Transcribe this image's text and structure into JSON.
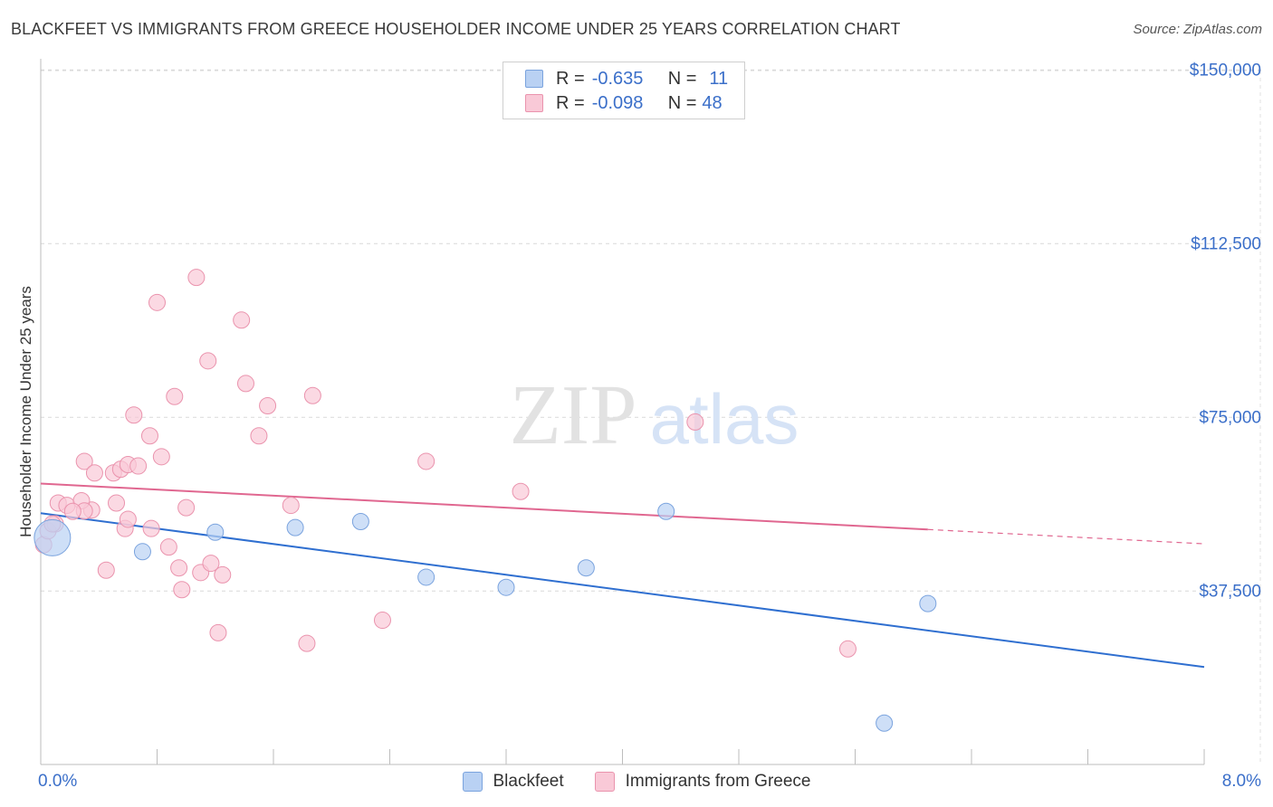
{
  "title": "BLACKFEET VS IMMIGRANTS FROM GREECE HOUSEHOLDER INCOME UNDER 25 YEARS CORRELATION CHART",
  "source": "Source: ZipAtlas.com",
  "watermark": {
    "zip": "ZIP",
    "atlas": "atlas"
  },
  "legend": {
    "r_label": "R =",
    "n_label": "N =",
    "rows": [
      {
        "r": "-0.635",
        "n": "11"
      },
      {
        "r": "-0.098",
        "n": "48"
      }
    ]
  },
  "colors": {
    "blackfeet_fill": "#b9d1f3",
    "blackfeet_stroke": "#7aa3de",
    "blackfeet_line": "#2f6fd0",
    "greece_fill": "#f9c9d7",
    "greece_stroke": "#ea93ad",
    "greece_line": "#e06790",
    "tick_label": "#3b6fc9"
  },
  "chart_data": {
    "type": "scatter",
    "title": "BLACKFEET VS IMMIGRANTS FROM GREECE HOUSEHOLDER INCOME UNDER 25 YEARS CORRELATION CHART",
    "xlabel": "",
    "ylabel": "Householder Income Under 25 years",
    "xlim": [
      0,
      8
    ],
    "ylim": [
      0,
      155000
    ],
    "x_tick_labels": {
      "min": "0.0%",
      "max": "8.0%"
    },
    "y_ticks": [
      {
        "value": 37500,
        "label": "$37,500"
      },
      {
        "value": 75000,
        "label": "$75,000"
      },
      {
        "value": 112500,
        "label": "$112,500"
      },
      {
        "value": 150000,
        "label": "$150,000"
      }
    ],
    "series": [
      {
        "name": "Blackfeet",
        "points": [
          {
            "x": 0.08,
            "y": 49000,
            "size": 20
          },
          {
            "x": 0.7,
            "y": 46000,
            "size": 9
          },
          {
            "x": 1.2,
            "y": 50200,
            "size": 9
          },
          {
            "x": 1.75,
            "y": 51200,
            "size": 9
          },
          {
            "x": 2.2,
            "y": 52500,
            "size": 9
          },
          {
            "x": 2.65,
            "y": 40500,
            "size": 9
          },
          {
            "x": 3.2,
            "y": 38300,
            "size": 9
          },
          {
            "x": 3.75,
            "y": 42500,
            "size": 9
          },
          {
            "x": 4.3,
            "y": 54700,
            "size": 9
          },
          {
            "x": 6.1,
            "y": 34800,
            "size": 9
          },
          {
            "x": 5.8,
            "y": 9000,
            "size": 9
          }
        ],
        "trend": {
          "x0": 0,
          "y0": 54300,
          "x1": 8,
          "y1": 21100,
          "dashed_from": null
        }
      },
      {
        "name": "Immigrants from Greece",
        "points": [
          {
            "x": 0.02,
            "y": 47500
          },
          {
            "x": 0.05,
            "y": 50500
          },
          {
            "x": 0.1,
            "y": 52000
          },
          {
            "x": 0.12,
            "y": 56500
          },
          {
            "x": 0.18,
            "y": 56000
          },
          {
            "x": 0.35,
            "y": 55000
          },
          {
            "x": 0.28,
            "y": 57000
          },
          {
            "x": 0.3,
            "y": 54800
          },
          {
            "x": 0.3,
            "y": 65500
          },
          {
            "x": 0.37,
            "y": 63000
          },
          {
            "x": 0.45,
            "y": 42000
          },
          {
            "x": 0.5,
            "y": 63000
          },
          {
            "x": 0.52,
            "y": 56500
          },
          {
            "x": 0.55,
            "y": 63800
          },
          {
            "x": 0.58,
            "y": 51000
          },
          {
            "x": 0.6,
            "y": 53000
          },
          {
            "x": 0.6,
            "y": 64800
          },
          {
            "x": 0.64,
            "y": 75500
          },
          {
            "x": 0.67,
            "y": 64500
          },
          {
            "x": 0.75,
            "y": 71000
          },
          {
            "x": 0.76,
            "y": 51000
          },
          {
            "x": 0.8,
            "y": 99800
          },
          {
            "x": 0.83,
            "y": 66500
          },
          {
            "x": 0.88,
            "y": 47000
          },
          {
            "x": 0.92,
            "y": 79500
          },
          {
            "x": 0.95,
            "y": 42500
          },
          {
            "x": 0.97,
            "y": 37800
          },
          {
            "x": 1.0,
            "y": 55500
          },
          {
            "x": 1.07,
            "y": 105200
          },
          {
            "x": 1.1,
            "y": 41500
          },
          {
            "x": 1.15,
            "y": 87200
          },
          {
            "x": 1.17,
            "y": 43500
          },
          {
            "x": 1.22,
            "y": 28500
          },
          {
            "x": 1.25,
            "y": 41000
          },
          {
            "x": 1.38,
            "y": 96000
          },
          {
            "x": 1.41,
            "y": 82300
          },
          {
            "x": 1.5,
            "y": 71000
          },
          {
            "x": 1.56,
            "y": 77500
          },
          {
            "x": 1.72,
            "y": 56000
          },
          {
            "x": 1.83,
            "y": 26200
          },
          {
            "x": 1.87,
            "y": 79700
          },
          {
            "x": 2.35,
            "y": 31200
          },
          {
            "x": 2.65,
            "y": 65500
          },
          {
            "x": 3.3,
            "y": 59000
          },
          {
            "x": 4.5,
            "y": 74000
          },
          {
            "x": 5.55,
            "y": 25000
          },
          {
            "x": 0.08,
            "y": 52000
          },
          {
            "x": 0.22,
            "y": 54700
          }
        ],
        "trend": {
          "x0": 0,
          "y0": 60700,
          "x1": 8,
          "y1": 47700,
          "dashed_from": 6.1
        }
      }
    ]
  }
}
